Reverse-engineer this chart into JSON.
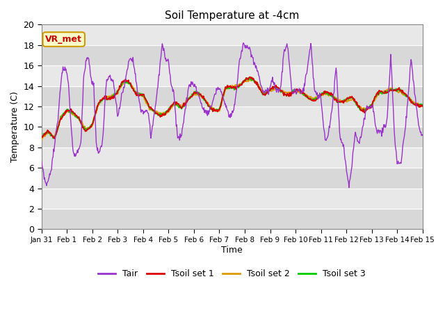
{
  "title": "Soil Temperature at -4cm",
  "xlabel": "Time",
  "ylabel": "Temperature (C)",
  "xlim": [
    0,
    15
  ],
  "ylim": [
    0,
    20
  ],
  "yticks": [
    0,
    2,
    4,
    6,
    8,
    10,
    12,
    14,
    16,
    18,
    20
  ],
  "xtick_labels": [
    "Jan 31",
    "Feb 1",
    "Feb 2",
    "Feb 3",
    "Feb 4",
    "Feb 5",
    "Feb 6",
    "Feb 7",
    "Feb 8",
    "Feb 9",
    "Feb 10",
    "Feb 11",
    "Feb 12",
    "Feb 13",
    "Feb 14",
    "Feb 15"
  ],
  "xtick_positions": [
    0,
    1,
    2,
    3,
    4,
    5,
    6,
    7,
    8,
    9,
    10,
    11,
    12,
    13,
    14,
    15
  ],
  "line_colors": {
    "Tair": "#9933cc",
    "Tsoil set 1": "#dd0000",
    "Tsoil set 2": "#dd9900",
    "Tsoil set 3": "#00cc00"
  },
  "annotation_text": "VR_met",
  "annotation_bg": "#ffffcc",
  "annotation_border": "#cc9900",
  "annotation_text_color": "#cc0000",
  "fig_bg_color": "#ffffff",
  "plot_bg_light": "#e8e8e8",
  "plot_bg_dark": "#d8d8d8",
  "grid_color": "#ffffff",
  "legend_colors": [
    "#9933cc",
    "#dd0000",
    "#dd9900",
    "#00cc00"
  ],
  "legend_labels": [
    "Tair",
    "Tsoil set 1",
    "Tsoil set 2",
    "Tsoil set 3"
  ],
  "tair_keys_t": [
    0,
    0.08,
    0.2,
    0.35,
    0.5,
    0.65,
    0.8,
    0.95,
    1.05,
    1.15,
    1.25,
    1.35,
    1.45,
    1.55,
    1.65,
    1.75,
    1.85,
    1.95,
    2.05,
    2.15,
    2.25,
    2.4,
    2.55,
    2.7,
    2.85,
    3.0,
    3.15,
    3.3,
    3.45,
    3.6,
    3.75,
    3.9,
    4.0,
    4.1,
    4.2,
    4.3,
    4.45,
    4.6,
    4.75,
    4.9,
    5.0,
    5.1,
    5.2,
    5.35,
    5.5,
    5.65,
    5.8,
    5.95,
    6.05,
    6.2,
    6.4,
    6.6,
    6.8,
    6.95,
    7.05,
    7.2,
    7.4,
    7.6,
    7.8,
    7.95,
    8.05,
    8.2,
    8.35,
    8.5,
    8.6,
    8.7,
    8.8,
    8.9,
    8.95,
    9.05,
    9.15,
    9.25,
    9.4,
    9.55,
    9.7,
    9.85,
    10.0,
    10.15,
    10.3,
    10.45,
    10.6,
    10.75,
    10.9,
    11.0,
    11.1,
    11.2,
    11.3,
    11.45,
    11.6,
    11.75,
    11.9,
    12.0,
    12.1,
    12.2,
    12.35,
    12.5,
    12.65,
    12.8,
    12.95,
    13.05,
    13.2,
    13.4,
    13.6,
    13.75,
    13.9,
    14.0,
    14.15,
    14.35,
    14.55,
    14.75,
    14.9,
    15.0
  ],
  "tair_keys_v": [
    6.4,
    5.2,
    4.2,
    5.5,
    8.0,
    11.0,
    15.5,
    15.8,
    14.5,
    10.5,
    7.5,
    7.2,
    7.8,
    8.5,
    14.5,
    16.5,
    16.7,
    14.5,
    14.2,
    8.2,
    7.3,
    8.5,
    14.5,
    15.0,
    14.0,
    11.0,
    13.0,
    14.5,
    16.7,
    16.7,
    14.0,
    11.5,
    11.5,
    11.5,
    11.5,
    9.0,
    11.5,
    14.5,
    18.2,
    16.5,
    16.5,
    14.2,
    13.5,
    9.0,
    9.0,
    11.5,
    14.0,
    14.3,
    14.0,
    13.0,
    11.5,
    11.5,
    13.0,
    14.0,
    13.5,
    12.5,
    11.0,
    12.0,
    16.5,
    18.2,
    17.8,
    17.5,
    16.5,
    15.5,
    14.5,
    13.5,
    13.5,
    13.5,
    13.5,
    14.5,
    14.5,
    13.5,
    13.5,
    17.5,
    17.8,
    13.5,
    13.5,
    13.5,
    13.5,
    15.5,
    18.2,
    13.5,
    13.0,
    13.0,
    10.0,
    8.5,
    9.5,
    12.0,
    16.0,
    9.0,
    8.2,
    5.8,
    4.2,
    5.8,
    9.5,
    8.2,
    10.0,
    12.0,
    12.0,
    12.0,
    9.5,
    9.5,
    10.5,
    17.0,
    9.0,
    6.5,
    6.5,
    10.5,
    16.7,
    12.0,
    9.5,
    9.2
  ],
  "tsoil_keys_t": [
    0,
    0.25,
    0.5,
    0.75,
    1.0,
    1.25,
    1.5,
    1.75,
    2.0,
    2.25,
    2.5,
    2.75,
    3.0,
    3.25,
    3.5,
    3.75,
    4.0,
    4.25,
    4.5,
    4.75,
    5.0,
    5.25,
    5.5,
    5.75,
    6.0,
    6.25,
    6.5,
    6.75,
    7.0,
    7.25,
    7.5,
    7.75,
    8.0,
    8.25,
    8.5,
    8.75,
    9.0,
    9.25,
    9.5,
    9.75,
    10.0,
    10.25,
    10.5,
    10.75,
    11.0,
    11.25,
    11.5,
    11.75,
    12.0,
    12.25,
    12.5,
    12.75,
    13.0,
    13.25,
    13.5,
    13.75,
    14.0,
    14.25,
    14.5,
    14.75,
    15.0
  ],
  "tsoil_keys_v": [
    8.8,
    9.2,
    9.0,
    11.2,
    11.5,
    11.0,
    10.8,
    10.0,
    10.1,
    12.0,
    13.0,
    13.2,
    13.3,
    14.2,
    14.3,
    13.5,
    13.0,
    11.5,
    11.5,
    11.5,
    11.5,
    12.0,
    12.0,
    13.0,
    13.2,
    12.8,
    12.5,
    12.0,
    11.5,
    13.5,
    14.0,
    14.3,
    14.4,
    14.4,
    14.3,
    13.5,
    13.5,
    13.5,
    13.5,
    13.5,
    13.5,
    13.0,
    13.0,
    13.0,
    13.0,
    13.0,
    13.0,
    12.8,
    12.5,
    12.5,
    12.0,
    12.0,
    12.0,
    13.0,
    13.5,
    14.0,
    13.5,
    13.0,
    12.8,
    12.5,
    12.0
  ]
}
